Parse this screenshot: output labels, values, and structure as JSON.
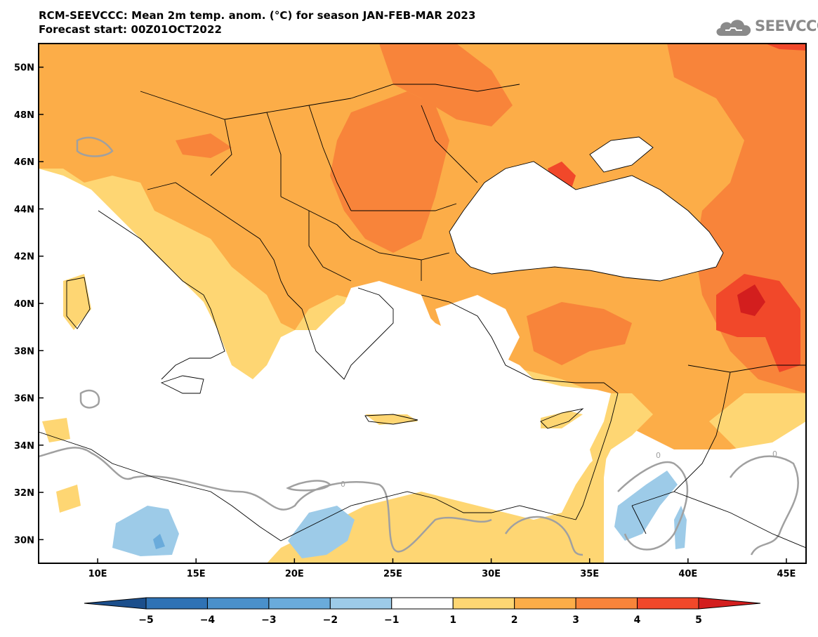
{
  "header": {
    "title_line1": "RCM-SEEVCCC: Mean 2m temp. anom. (°C) for season JAN-FEB-MAR 2023",
    "title_line2": "Forecast start: 00Z01OCT2022"
  },
  "logo": {
    "text": "SEEVCCC",
    "icon": "cloud-icon"
  },
  "map": {
    "lon_range": [
      7,
      46
    ],
    "lat_range": [
      29,
      51
    ],
    "lon_ticks": [
      "10E",
      "15E",
      "20E",
      "25E",
      "30E",
      "35E",
      "40E",
      "45E"
    ],
    "lat_ticks": [
      "50N",
      "48N",
      "46N",
      "44N",
      "42N",
      "40N",
      "38N",
      "36N",
      "34N",
      "32N",
      "30N"
    ],
    "contour_label": "0"
  },
  "colorbar": {
    "labels": [
      "-5",
      "-4",
      "-3",
      "-2",
      "-1",
      "1",
      "2",
      "3",
      "4",
      "5"
    ],
    "colors": [
      "#1c4f8c",
      "#2f72b5",
      "#4a90cb",
      "#6aabdb",
      "#9dcbe8",
      "#ffffff",
      "#fed673",
      "#fcad48",
      "#f8843a",
      "#f1482a",
      "#d31e1e"
    ]
  },
  "colors": {
    "land_1_2": "#fed673",
    "land_2_3": "#fcad48",
    "land_3_4": "#f8843a",
    "land_4_5": "#f1482a",
    "land_gt5": "#d31e1e",
    "neg_1_2": "#9dcbe8",
    "neg_2_3": "#6aabdb",
    "zero_contour": "#a0a0a0"
  }
}
